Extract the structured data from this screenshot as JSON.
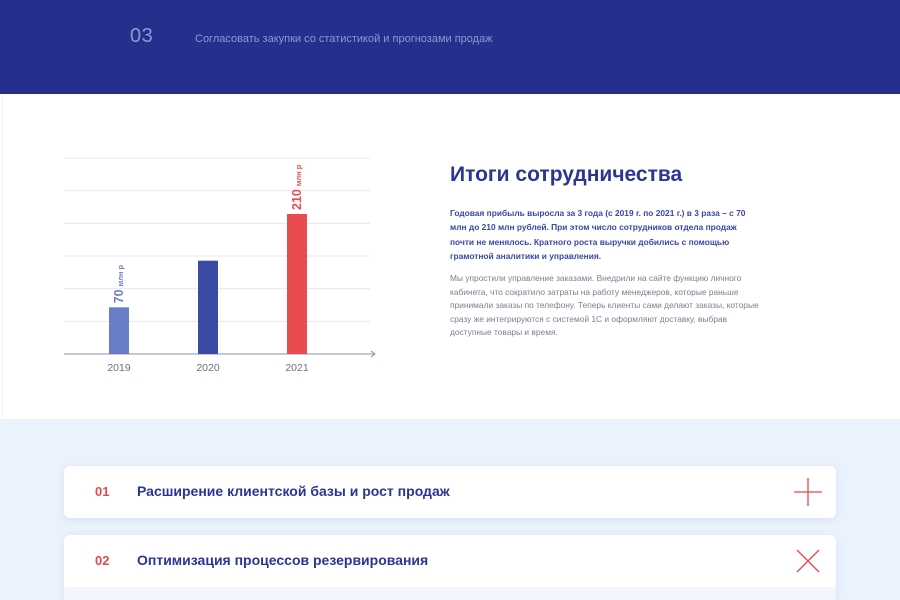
{
  "step": {
    "number": "03",
    "text": "Согласовать закупки со статистикой и прогнозами продаж"
  },
  "results": {
    "title": "Итоги сотрудничества",
    "lead": "Годовая прибыль выросла за 3 года (с 2019 г. по 2021 г.) в  3 раза – с 70 млн до 210 млн рублей. При этом число сотрудников отдела продаж почти не менялось. Кратного роста выручки добились с помощью грамотной аналитики и управления.",
    "body": "Мы упростили управление заказами. Внедрили на сайте функцию личного кабинета, что сократило затраты на работу менеджеров, которые раньше принимали заказы по телефону. Теперь клиенты сами делают заказы, которые сразу же интегрируются с системой 1С и оформляют доставку, выбрав доступные товары и время."
  },
  "chart_data": {
    "type": "bar",
    "categories": [
      "2019",
      "2020",
      "2021"
    ],
    "values": [
      70,
      140,
      210
    ],
    "value_labels": [
      {
        "number": "70",
        "unit": "млн р"
      },
      null,
      {
        "number": "210",
        "unit": "млн р"
      }
    ],
    "colors": [
      "#6a7ec8",
      "#3b4aa2",
      "#e84c4f"
    ],
    "ylim": [
      0,
      294
    ],
    "grid": true,
    "title": "",
    "xlabel": "",
    "ylabel": ""
  },
  "accordion": {
    "items": [
      {
        "number": "01",
        "title": "Расширение клиентской базы и рост продаж",
        "state": "collapsed",
        "icon": "plus-icon"
      },
      {
        "number": "02",
        "title": "Оптимизация процессов резервирования",
        "state": "expanded",
        "icon": "close-icon"
      }
    ],
    "accent_color": "#e8474e"
  }
}
